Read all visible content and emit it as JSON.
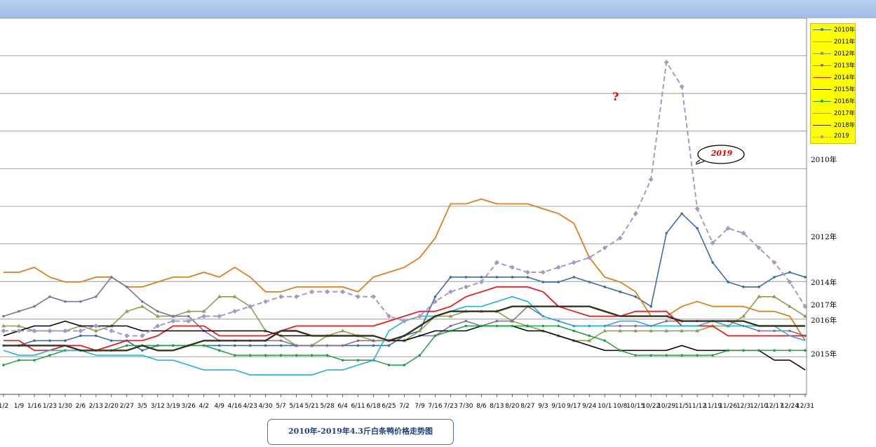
{
  "chart_data": {
    "type": "line",
    "title": "2010年-2019年4.3斤白条鸭价格走势图",
    "x_tick_labels": [
      "1/2",
      "1/9",
      "1/16",
      "1/23",
      "1/30",
      "2/6",
      "2/13",
      "2/20",
      "2/27",
      "3/5",
      "3/12",
      "3/19",
      "3/26",
      "4/2",
      "4/9",
      "4/16",
      "4/23",
      "4/30",
      "5/7",
      "5/14",
      "5/21",
      "5/28",
      "6/4",
      "6/11",
      "6/18",
      "6/25",
      "7/2",
      "7/9",
      "7/16",
      "7/23",
      "7/30",
      "8/6",
      "8/13",
      "8/20",
      "8/27",
      "9/3",
      "9/10",
      "9/17",
      "9/24",
      "10/1",
      "10/8",
      "10/15",
      "10/22",
      "10/29",
      "11/5",
      "11/12",
      "11/19",
      "11/26",
      "12/3",
      "12/10",
      "12/17",
      "12/24",
      "12/31"
    ],
    "legend_position": "right",
    "grid": true,
    "series": [
      {
        "name": "2010年",
        "color": "#3a6fa0",
        "marker": "circle",
        "width": 1.6,
        "values": [
          3.2,
          3.2,
          3.3,
          3.3,
          3.3,
          3.4,
          3.4,
          3.3,
          3.3,
          3.1,
          3.2,
          3.2,
          3.2,
          3.2,
          3.2,
          3.2,
          3.2,
          3.2,
          3.2,
          3.2,
          3.2,
          3.2,
          3.2,
          3.2,
          3.2,
          3.2,
          3.4,
          3.5,
          4.2,
          4.6,
          4.6,
          4.6,
          4.6,
          4.6,
          4.6,
          4.5,
          4.5,
          4.6,
          4.5,
          4.4,
          4.3,
          4.2,
          4.0,
          5.5,
          5.9,
          5.6,
          4.9,
          4.5,
          4.4,
          4.4,
          4.6,
          4.7,
          4.6
        ]
      },
      {
        "name": "2011年",
        "color": "#d98020",
        "marker": "none",
        "width": 1.8,
        "values": [
          4.7,
          4.7,
          4.8,
          4.6,
          4.5,
          4.5,
          4.6,
          4.6,
          4.4,
          4.4,
          4.5,
          4.6,
          4.6,
          4.7,
          4.6,
          4.8,
          4.6,
          4.3,
          4.3,
          4.4,
          4.4,
          4.4,
          4.4,
          4.3,
          4.6,
          4.7,
          4.8,
          5.0,
          5.4,
          6.1,
          6.1,
          6.2,
          6.1,
          6.1,
          6.1,
          6.0,
          5.9,
          5.7,
          5.0,
          4.6,
          4.5,
          4.3,
          3.8,
          3.8,
          4.0,
          4.1,
          4.0,
          4.0,
          4.0,
          3.9,
          3.9,
          3.8,
          3.3
        ]
      },
      {
        "name": "2012年",
        "color": "#8aa050",
        "marker": "triangle",
        "width": 1.6,
        "values": [
          3.6,
          3.6,
          3.5,
          3.5,
          3.5,
          3.6,
          3.5,
          3.6,
          3.9,
          4.0,
          3.8,
          3.8,
          3.9,
          3.9,
          4.2,
          4.2,
          4.0,
          3.5,
          3.4,
          3.2,
          3.2,
          3.4,
          3.5,
          3.4,
          3.3,
          3.3,
          3.3,
          3.5,
          3.8,
          3.8,
          3.9,
          3.9,
          3.9,
          3.7,
          3.6,
          3.5,
          3.4,
          3.3,
          3.3,
          3.5,
          3.5,
          3.5,
          3.5,
          3.5,
          3.5,
          3.5,
          3.6,
          3.6,
          3.8,
          4.2,
          4.2,
          4.0,
          3.8
        ]
      },
      {
        "name": "2013年",
        "color": "#8070a0",
        "marker": "circle",
        "width": 1.6,
        "values": [
          3.8,
          3.9,
          4.0,
          4.2,
          4.1,
          4.1,
          4.2,
          4.6,
          4.4,
          4.1,
          3.9,
          3.8,
          3.8,
          3.5,
          3.3,
          3.3,
          3.3,
          3.3,
          3.3,
          3.2,
          3.2,
          3.2,
          3.2,
          3.3,
          3.3,
          3.3,
          3.3,
          3.4,
          3.4,
          3.6,
          3.7,
          3.6,
          3.7,
          3.7,
          4.0,
          3.8,
          3.7,
          3.6,
          3.6,
          3.6,
          3.6,
          3.6,
          3.6,
          3.7,
          3.7,
          3.7,
          3.7,
          3.7,
          3.6,
          3.5,
          3.5,
          3.5,
          3.4
        ]
      },
      {
        "name": "2014年",
        "color": "#e02020",
        "marker": "none",
        "width": 1.8,
        "values": [
          3.3,
          3.3,
          3.1,
          3.1,
          3.2,
          3.2,
          3.1,
          3.2,
          3.3,
          3.3,
          3.4,
          3.6,
          3.6,
          3.6,
          3.4,
          3.4,
          3.4,
          3.4,
          3.5,
          3.6,
          3.6,
          3.6,
          3.6,
          3.6,
          3.6,
          3.7,
          3.8,
          3.9,
          3.9,
          4.0,
          4.2,
          4.3,
          4.4,
          4.4,
          4.4,
          4.3,
          4.0,
          3.9,
          3.8,
          3.8,
          3.8,
          3.9,
          3.9,
          3.9,
          3.6,
          3.6,
          3.6,
          3.4,
          3.4,
          3.4,
          3.4,
          3.4,
          3.4
        ]
      },
      {
        "name": "2015年",
        "color": "#000000",
        "marker": "none",
        "width": 1.5,
        "values": [
          3.4,
          3.5,
          3.6,
          3.6,
          3.7,
          3.6,
          3.6,
          3.6,
          3.6,
          3.5,
          3.5,
          3.5,
          3.5,
          3.5,
          3.5,
          3.5,
          3.5,
          3.5,
          3.4,
          3.4,
          3.4,
          3.4,
          3.4,
          3.4,
          3.4,
          3.3,
          3.3,
          3.4,
          3.5,
          3.5,
          3.5,
          3.6,
          3.6,
          3.6,
          3.5,
          3.5,
          3.4,
          3.3,
          3.2,
          3.1,
          3.1,
          3.1,
          3.1,
          3.1,
          3.2,
          3.1,
          3.1,
          3.1,
          3.1,
          3.1,
          2.9,
          2.9,
          2.7
        ]
      },
      {
        "name": "2016年",
        "color": "#20a040",
        "marker": "circle",
        "width": 1.5,
        "values": [
          2.8,
          2.9,
          2.9,
          3.0,
          3.1,
          3.1,
          3.1,
          3.1,
          3.2,
          3.2,
          3.2,
          3.2,
          3.2,
          3.2,
          3.1,
          3.0,
          3.0,
          3.0,
          3.0,
          3.0,
          3.0,
          3.0,
          2.9,
          2.9,
          2.9,
          2.8,
          2.8,
          3.0,
          3.4,
          3.5,
          3.6,
          3.6,
          3.6,
          3.6,
          3.6,
          3.6,
          3.6,
          3.5,
          3.4,
          3.3,
          3.1,
          3.0,
          3.0,
          3.0,
          3.0,
          3.0,
          3.0,
          3.1,
          3.1,
          3.1,
          3.1,
          3.1,
          3.1
        ]
      },
      {
        "name": "2017年",
        "color": "#20b0d8",
        "marker": "none",
        "width": 1.6,
        "values": [
          3.1,
          3.0,
          3.0,
          3.1,
          3.1,
          3.1,
          3.0,
          3.0,
          3.0,
          3.0,
          2.9,
          2.9,
          2.8,
          2.7,
          2.7,
          2.7,
          2.6,
          2.6,
          2.6,
          2.6,
          2.6,
          2.7,
          2.7,
          2.8,
          2.9,
          3.5,
          3.7,
          3.8,
          3.8,
          3.9,
          4.0,
          4.0,
          4.1,
          4.2,
          4.1,
          3.8,
          3.7,
          3.6,
          3.6,
          3.6,
          3.7,
          3.7,
          3.6,
          3.6,
          3.6,
          3.6,
          3.7,
          3.6,
          3.6,
          3.6,
          3.6,
          3.4,
          3.3
        ]
      },
      {
        "name": "2018年",
        "color": "#3a3020",
        "marker": "none",
        "width": 2.4,
        "values": [
          3.2,
          3.2,
          3.2,
          3.2,
          3.2,
          3.1,
          3.1,
          3.1,
          3.1,
          3.2,
          3.1,
          3.1,
          3.2,
          3.3,
          3.3,
          3.3,
          3.3,
          3.3,
          3.5,
          3.5,
          3.4,
          3.4,
          3.4,
          3.4,
          3.4,
          3.3,
          3.4,
          3.6,
          3.8,
          3.9,
          3.9,
          3.9,
          3.9,
          4.0,
          4.0,
          4.0,
          4.0,
          4.0,
          4.0,
          3.9,
          3.8,
          3.8,
          3.8,
          3.8,
          3.7,
          3.7,
          3.7,
          3.7,
          3.7,
          3.6,
          3.6,
          3.6,
          3.6
        ]
      },
      {
        "name": "2019",
        "color": "#a898c4",
        "marker": "diamond",
        "width": 2,
        "dashed": true,
        "values": [
          3.5,
          3.5,
          3.5,
          3.5,
          3.5,
          3.5,
          3.6,
          3.5,
          3.4,
          3.4,
          3.6,
          3.7,
          3.7,
          3.8,
          3.8,
          3.9,
          4.0,
          4.1,
          4.2,
          4.2,
          4.3,
          4.3,
          4.3,
          4.2,
          4.2,
          3.8,
          3.7,
          3.8,
          4.1,
          4.3,
          4.4,
          4.5,
          4.9,
          4.8,
          4.7,
          4.7,
          4.8,
          4.9,
          5.0,
          5.2,
          5.4,
          5.9,
          6.6,
          9.0,
          8.5,
          6.0,
          5.3,
          5.6,
          5.5,
          5.2,
          4.9,
          4.5,
          4.0
        ]
      }
    ]
  },
  "labels": {
    "question_mark": "?",
    "bubble": "2019",
    "year_tags": [
      "2010年",
      "2012年",
      "2014年",
      "2017年",
      "2016年",
      "2015年"
    ]
  }
}
